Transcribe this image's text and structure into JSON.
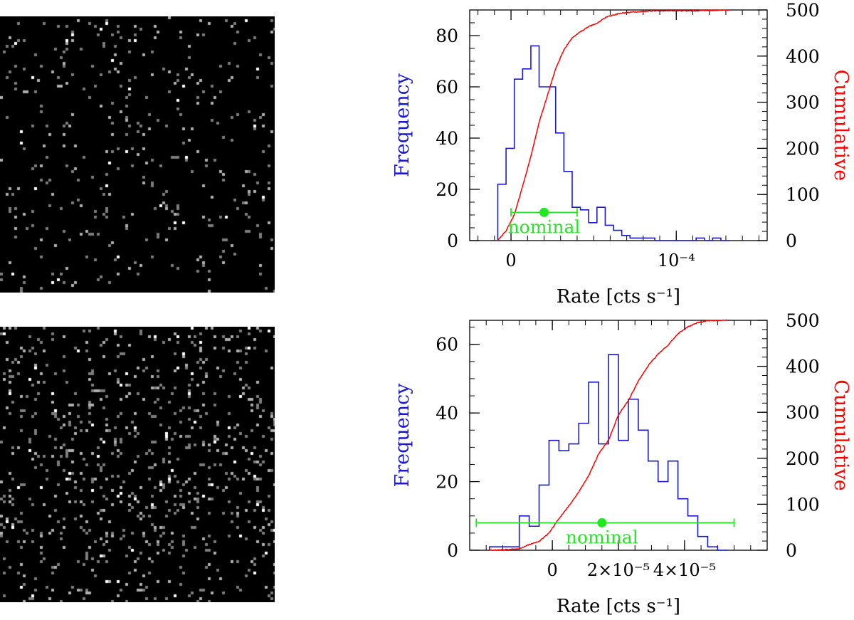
{
  "images": [
    {
      "name": "noise-image-top",
      "seed": 7,
      "density": 0.045
    },
    {
      "name": "noise-image-bottom",
      "seed": 19,
      "density": 0.085
    }
  ],
  "colors": {
    "frequency": "#1a1acc",
    "cumulative": "#ff0000",
    "nominal": "#22e822",
    "axis": "#000000"
  },
  "chart_data": [
    {
      "type": "histogram",
      "xlabel": "Rate [cts s⁻¹]",
      "ylabel_left": "Frequency",
      "ylabel_right": "Cumulative",
      "xlim": [
        -2.5e-05,
        0.000155
      ],
      "ylim_left": [
        0,
        90
      ],
      "ylim_right": [
        0,
        500
      ],
      "x_ticks": [
        {
          "value": 0,
          "label": "0"
        },
        {
          "value": 0.0001,
          "label": "10⁻⁴"
        }
      ],
      "x_minor_step": 1e-05,
      "y_ticks_left": [
        {
          "value": 0,
          "label": "0"
        },
        {
          "value": 20,
          "label": "20"
        },
        {
          "value": 40,
          "label": "40"
        },
        {
          "value": 60,
          "label": "60"
        },
        {
          "value": 80,
          "label": "80"
        }
      ],
      "y_minor_left_step": 5,
      "y_ticks_right": [
        {
          "value": 0,
          "label": "0"
        },
        {
          "value": 100,
          "label": "100"
        },
        {
          "value": 200,
          "label": "200"
        },
        {
          "value": 300,
          "label": "300"
        },
        {
          "value": 400,
          "label": "400"
        },
        {
          "value": 500,
          "label": "500"
        }
      ],
      "y_minor_right_step": 20,
      "bin_edges": [
        -8e-06,
        -3e-06,
        2e-06,
        7e-06,
        1.2e-05,
        1.7e-05,
        2.2e-05,
        2.7e-05,
        3.2e-05,
        3.7e-05,
        4.2e-05,
        4.7e-05,
        5.2e-05,
        5.7e-05,
        6.2e-05,
        6.7e-05,
        7.2e-05,
        7.7e-05,
        8.2e-05,
        8.7e-05,
        9.2e-05,
        9.7e-05,
        0.000102,
        0.000107,
        0.000112,
        0.000117,
        0.000122,
        0.000127,
        0.000132
      ],
      "frequency": [
        22,
        36,
        63,
        67,
        76,
        60,
        60,
        42,
        27,
        13,
        12,
        7,
        13,
        6,
        4,
        2,
        1,
        1,
        1,
        0,
        0,
        0,
        0,
        0,
        1,
        0,
        1,
        0
      ],
      "nominal": {
        "value": 2e-05,
        "error_low": 0.0,
        "error_high": 4e-05,
        "y": 11,
        "label": "nominal"
      }
    },
    {
      "type": "histogram",
      "xlabel": "Rate [cts s⁻¹]",
      "ylabel_left": "Frequency",
      "ylabel_right": "Cumulative",
      "xlim": [
        -2.5e-05,
        6.5e-05
      ],
      "ylim_left": [
        0,
        67
      ],
      "ylim_right": [
        0,
        500
      ],
      "x_ticks": [
        {
          "value": 0,
          "label": "0"
        },
        {
          "value": 2e-05,
          "label": "2×10⁻⁵"
        },
        {
          "value": 4e-05,
          "label": "4×10⁻⁵"
        }
      ],
      "x_minor_step": 5e-06,
      "y_ticks_left": [
        {
          "value": 0,
          "label": "0"
        },
        {
          "value": 20,
          "label": "20"
        },
        {
          "value": 40,
          "label": "40"
        },
        {
          "value": 60,
          "label": "60"
        }
      ],
      "y_minor_left_step": 5,
      "y_ticks_right": [
        {
          "value": 0,
          "label": "0"
        },
        {
          "value": 100,
          "label": "100"
        },
        {
          "value": 200,
          "label": "200"
        },
        {
          "value": 300,
          "label": "300"
        },
        {
          "value": 400,
          "label": "400"
        },
        {
          "value": 500,
          "label": "500"
        }
      ],
      "y_minor_right_step": 20,
      "bin_edges": [
        -1.9e-05,
        -1.6e-05,
        -1.3e-05,
        -1e-05,
        -7e-06,
        -4e-06,
        -1e-06,
        2e-06,
        5e-06,
        8e-06,
        1.1e-05,
        1.4e-05,
        1.7e-05,
        2e-05,
        2.3e-05,
        2.6e-05,
        2.9e-05,
        3.2e-05,
        3.5e-05,
        3.8e-05,
        4.1e-05,
        4.4e-05,
        4.7e-05,
        5e-05,
        5.3e-05
      ],
      "frequency": [
        1,
        1,
        1,
        10,
        7,
        19,
        32,
        29,
        31,
        37,
        49,
        31,
        57,
        32,
        44,
        35,
        26,
        20,
        26,
        15,
        10,
        4,
        1,
        0
      ],
      "nominal": {
        "value": 1.5e-05,
        "error_low": -2.3e-05,
        "error_high": 5.5e-05,
        "y": 8,
        "label": "nominal"
      }
    }
  ]
}
